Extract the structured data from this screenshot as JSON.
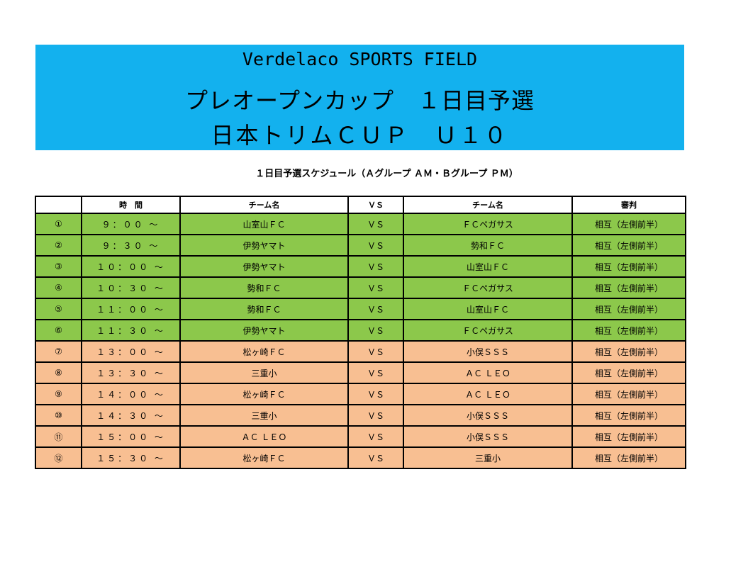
{
  "banner": {
    "line1": "Verdelaco SPORTS FIELD",
    "line2": "プレオープンカップ　１日目予選",
    "line3": "日本トリムＣＵＰ　Ｕ１０"
  },
  "subtitle": "１日目予選スケジュール（Ａグループ ＡＭ・Ｂグループ ＰＭ）",
  "colors": {
    "banner": "#13b1ee",
    "am_row": "#8cc84b",
    "pm_row": "#f8bf92"
  },
  "table": {
    "headers": [
      "",
      "時　間",
      "チーム名",
      "ＶＳ",
      "チーム名",
      "審判"
    ],
    "rows": [
      {
        "no": "①",
        "time": "９：００ ～",
        "team1": "山室山ＦＣ",
        "vs": "ＶＳ",
        "team2": "ＦＣペガサス",
        "ref": "相互（左側前半）",
        "group": "am"
      },
      {
        "no": "②",
        "time": "９：３０ ～",
        "team1": "伊勢ヤマト",
        "vs": "ＶＳ",
        "team2": "勢和ＦＣ",
        "ref": "相互（左側前半）",
        "group": "am"
      },
      {
        "no": "③",
        "time": "１０：００ ～",
        "team1": "伊勢ヤマト",
        "vs": "ＶＳ",
        "team2": "山室山ＦＣ",
        "ref": "相互（左側前半）",
        "group": "am"
      },
      {
        "no": "④",
        "time": "１０：３０ ～",
        "team1": "勢和ＦＣ",
        "vs": "ＶＳ",
        "team2": "ＦＣペガサス",
        "ref": "相互（左側前半）",
        "group": "am"
      },
      {
        "no": "⑤",
        "time": "１１：００ ～",
        "team1": "勢和ＦＣ",
        "vs": "ＶＳ",
        "team2": "山室山ＦＣ",
        "ref": "相互（左側前半）",
        "group": "am"
      },
      {
        "no": "⑥",
        "time": "１１：３０ ～",
        "team1": "伊勢ヤマト",
        "vs": "ＶＳ",
        "team2": "ＦＣペガサス",
        "ref": "相互（左側前半）",
        "group": "am"
      },
      {
        "no": "⑦",
        "time": "１３：００ ～",
        "team1": "松ヶ崎ＦＣ",
        "vs": "ＶＳ",
        "team2": "小俣ＳＳＳ",
        "ref": "相互（左側前半）",
        "group": "pm"
      },
      {
        "no": "⑧",
        "time": "１３：３０ ～",
        "team1": "三重小",
        "vs": "ＶＳ",
        "team2": "ＡＣ ＬＥＯ",
        "ref": "相互（左側前半）",
        "group": "pm"
      },
      {
        "no": "⑨",
        "time": "１４：００ ～",
        "team1": "松ヶ崎ＦＣ",
        "vs": "ＶＳ",
        "team2": "ＡＣ ＬＥＯ",
        "ref": "相互（左側前半）",
        "group": "pm"
      },
      {
        "no": "⑩",
        "time": "１４：３０ ～",
        "team1": "三重小",
        "vs": "ＶＳ",
        "team2": "小俣ＳＳＳ",
        "ref": "相互（左側前半）",
        "group": "pm"
      },
      {
        "no": "⑪",
        "time": "１５：００ ～",
        "team1": "ＡＣ ＬＥＯ",
        "vs": "ＶＳ",
        "team2": "小俣ＳＳＳ",
        "ref": "相互（左側前半）",
        "group": "pm"
      },
      {
        "no": "⑫",
        "time": "１５：３０ ～",
        "team1": "松ヶ崎ＦＣ",
        "vs": "ＶＳ",
        "team2": "三重小",
        "ref": "相互（左側前半）",
        "group": "pm"
      }
    ]
  }
}
